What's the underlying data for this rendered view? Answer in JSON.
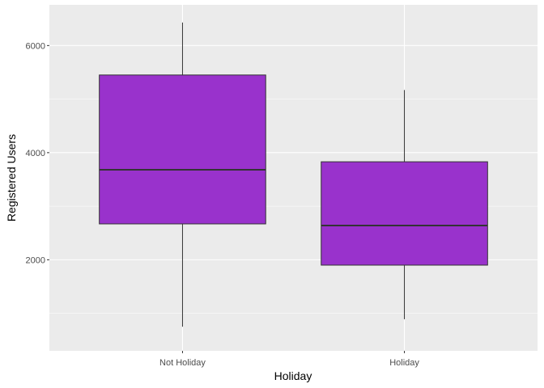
{
  "chart_data": {
    "type": "boxplot",
    "xlabel": "Holiday",
    "ylabel": "Registered Users",
    "categories": [
      "Not Holiday",
      "Holiday"
    ],
    "boxes": [
      {
        "category": "Not Holiday",
        "min": 750,
        "q1": 2670,
        "median": 3680,
        "q3": 5450,
        "max": 6430
      },
      {
        "category": "Holiday",
        "min": 890,
        "q1": 1900,
        "median": 2640,
        "q3": 3830,
        "max": 5170
      }
    ],
    "ylim": [
      300,
      6760
    ],
    "y_ticks": [
      2000,
      4000,
      6000
    ],
    "y_tick_labels": [
      "2000",
      "4000",
      "6000"
    ],
    "grid": true,
    "colors": {
      "box_fill": "#9932CC",
      "box_line": "#333333",
      "panel_background": "#EBEBEB",
      "grid_line": "#FFFFFF"
    }
  }
}
